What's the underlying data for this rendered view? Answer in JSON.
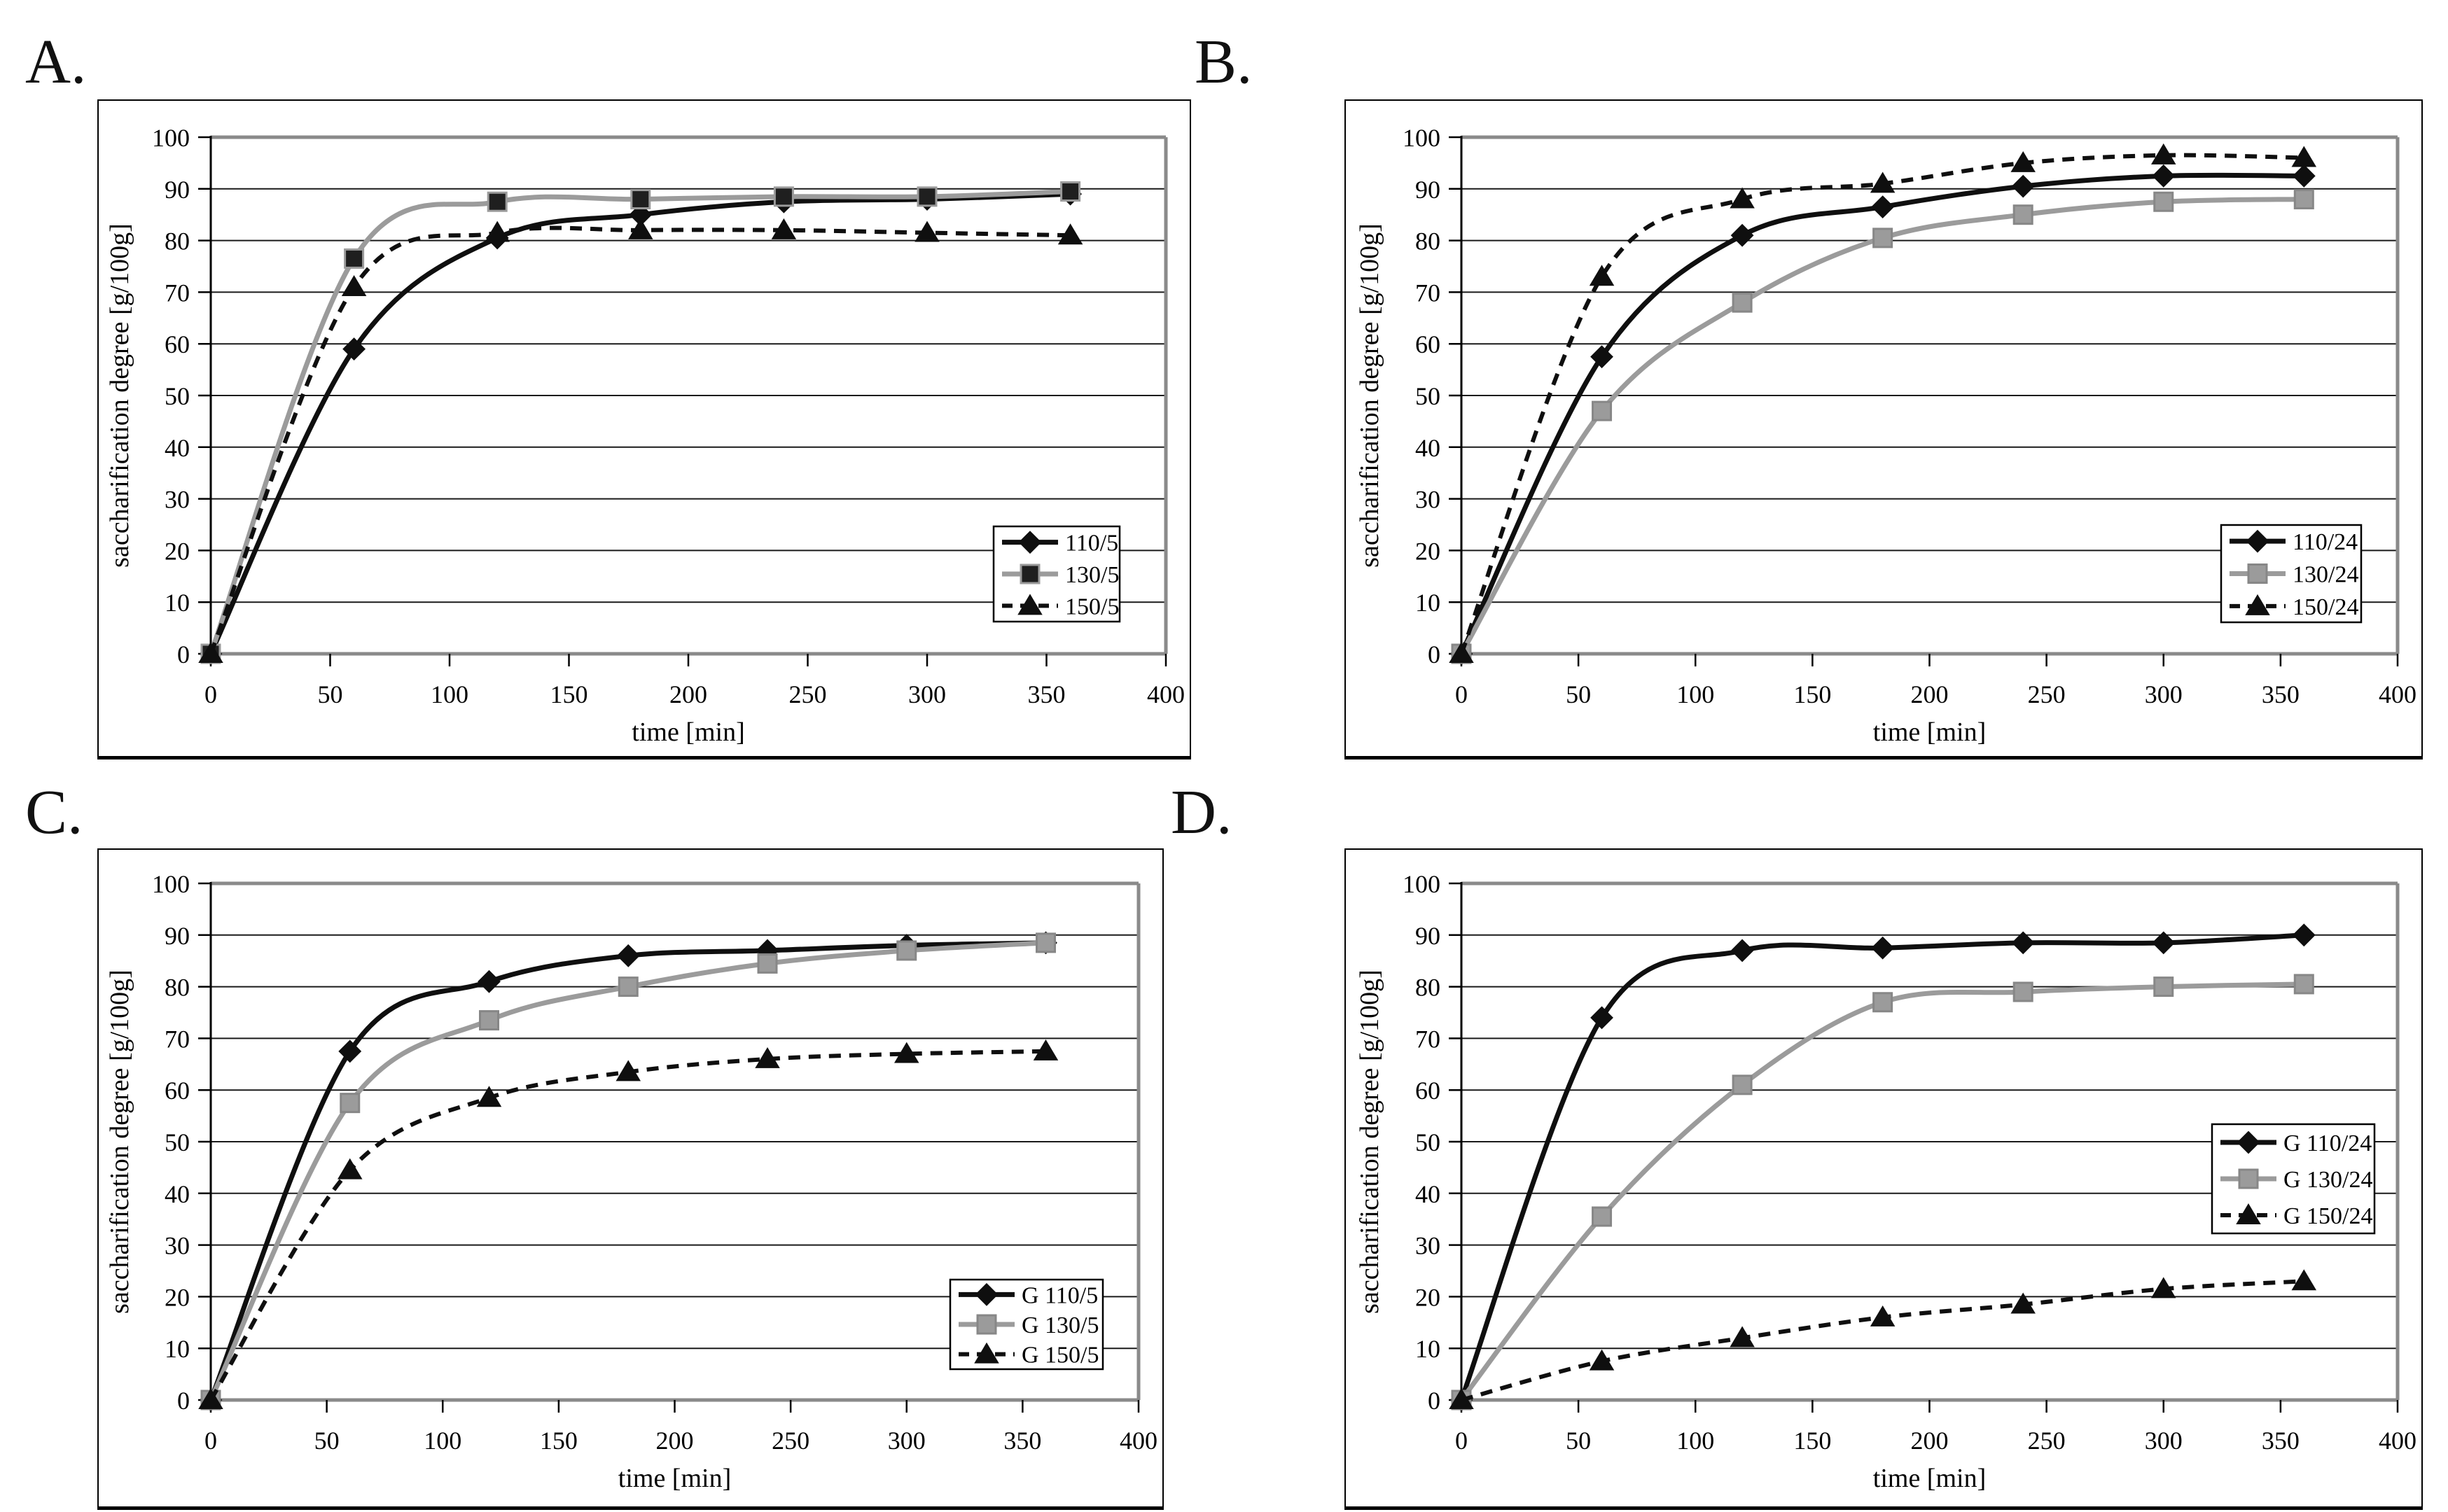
{
  "figure": {
    "description": "Four line charts (A-D) of saccharification degree over time",
    "background_color": "#ffffff",
    "text_color": "#000000",
    "series_black_color": "#0f0f0f",
    "series_gray_color": "#9b9b9b",
    "plot_border_color": "#8a8a8a"
  },
  "chart_data": [
    {
      "type": "line",
      "panel_label": "A.",
      "xlabel": "time [min]",
      "ylabel": "saccharification degree [g/100g]",
      "xlim": [
        0,
        400
      ],
      "ylim": [
        0,
        100
      ],
      "xticks": [
        0,
        50,
        100,
        150,
        200,
        250,
        300,
        350,
        400
      ],
      "yticks": [
        0,
        10,
        20,
        30,
        40,
        50,
        60,
        70,
        80,
        90,
        100
      ],
      "grid": "horizontal",
      "legend_position": "inside-lower-right",
      "x": [
        0,
        60,
        120,
        180,
        240,
        300,
        360
      ],
      "series": [
        {
          "name": "110/5",
          "line": "solid",
          "color": "#0f0f0f",
          "marker": "diamond",
          "marker_fill": "#0f0f0f",
          "marker_stroke": "#0f0f0f",
          "values": [
            0,
            59,
            80.5,
            85,
            87.5,
            88,
            89
          ]
        },
        {
          "name": "130/5",
          "line": "solid",
          "color": "#9b9b9b",
          "marker": "square",
          "marker_fill": "#1f1f1f",
          "marker_stroke": "#9b9b9b",
          "values": [
            0,
            76.5,
            87.5,
            88,
            88.5,
            88.5,
            89.5
          ]
        },
        {
          "name": "150/5",
          "line": "dashed",
          "color": "#0f0f0f",
          "marker": "triangle",
          "marker_fill": "#0f0f0f",
          "marker_stroke": "#0f0f0f",
          "values": [
            0,
            71,
            81.5,
            82,
            82,
            81.5,
            81
          ]
        }
      ]
    },
    {
      "type": "line",
      "panel_label": "B.",
      "xlabel": "time [min]",
      "ylabel": "saccharification degree [g/100g]",
      "xlim": [
        0,
        400
      ],
      "ylim": [
        0,
        100
      ],
      "xticks": [
        0,
        50,
        100,
        150,
        200,
        250,
        300,
        350,
        400
      ],
      "yticks": [
        0,
        10,
        20,
        30,
        40,
        50,
        60,
        70,
        80,
        90,
        100
      ],
      "grid": "horizontal",
      "legend_position": "inside-lower-right",
      "x": [
        0,
        60,
        120,
        180,
        240,
        300,
        360
      ],
      "series": [
        {
          "name": "110/24",
          "line": "solid",
          "color": "#0f0f0f",
          "marker": "diamond",
          "marker_fill": "#0f0f0f",
          "marker_stroke": "#0f0f0f",
          "values": [
            0,
            57.5,
            81,
            86.5,
            90.5,
            92.5,
            92.5
          ]
        },
        {
          "name": "130/24",
          "line": "solid",
          "color": "#9b9b9b",
          "marker": "square",
          "marker_fill": "#9b9b9b",
          "marker_stroke": "#878787",
          "values": [
            0,
            47,
            68,
            80.5,
            85,
            87.5,
            88
          ]
        },
        {
          "name": "150/24",
          "line": "dashed",
          "color": "#0f0f0f",
          "marker": "triangle",
          "marker_fill": "#0f0f0f",
          "marker_stroke": "#0f0f0f",
          "values": [
            0,
            73,
            88,
            91,
            95,
            96.5,
            96
          ]
        }
      ]
    },
    {
      "type": "line",
      "panel_label": "C.",
      "xlabel": "time [min]",
      "ylabel": "saccharification degree [g/100g]",
      "xlim": [
        0,
        400
      ],
      "ylim": [
        0,
        100
      ],
      "xticks": [
        0,
        50,
        100,
        150,
        200,
        250,
        300,
        350,
        400
      ],
      "yticks": [
        0,
        10,
        20,
        30,
        40,
        50,
        60,
        70,
        80,
        90,
        100
      ],
      "grid": "horizontal",
      "legend_position": "inside-lower-right",
      "x": [
        0,
        60,
        120,
        180,
        240,
        300,
        360
      ],
      "series": [
        {
          "name": "G 110/5",
          "line": "solid",
          "color": "#0f0f0f",
          "marker": "diamond",
          "marker_fill": "#0f0f0f",
          "marker_stroke": "#0f0f0f",
          "values": [
            0,
            67.5,
            81,
            86,
            87,
            88,
            88.5
          ]
        },
        {
          "name": "G 130/5",
          "line": "solid",
          "color": "#9b9b9b",
          "marker": "square",
          "marker_fill": "#9b9b9b",
          "marker_stroke": "#878787",
          "values": [
            0,
            57.5,
            73.5,
            80,
            84.5,
            87,
            88.5
          ]
        },
        {
          "name": "G 150/5",
          "line": "dashed",
          "color": "#0f0f0f",
          "marker": "triangle",
          "marker_fill": "#0f0f0f",
          "marker_stroke": "#0f0f0f",
          "values": [
            0,
            44.5,
            58.5,
            63.5,
            66,
            67,
            67.5
          ]
        }
      ]
    },
    {
      "type": "line",
      "panel_label": "D.",
      "xlabel": "time [min]",
      "ylabel": "saccharification degree [g/100g]",
      "xlim": [
        0,
        400
      ],
      "ylim": [
        0,
        100
      ],
      "xticks": [
        0,
        50,
        100,
        150,
        200,
        250,
        300,
        350,
        400
      ],
      "yticks": [
        0,
        10,
        20,
        30,
        40,
        50,
        60,
        70,
        80,
        90,
        100
      ],
      "grid": "horizontal",
      "legend_position": "inside-middle-right",
      "x": [
        0,
        60,
        120,
        180,
        240,
        300,
        360
      ],
      "series": [
        {
          "name": "G 110/24",
          "line": "solid",
          "color": "#0f0f0f",
          "marker": "diamond",
          "marker_fill": "#0f0f0f",
          "marker_stroke": "#0f0f0f",
          "values": [
            0,
            74,
            87,
            87.5,
            88.5,
            88.5,
            90
          ]
        },
        {
          "name": "G 130/24",
          "line": "solid",
          "color": "#9b9b9b",
          "marker": "square",
          "marker_fill": "#9b9b9b",
          "marker_stroke": "#878787",
          "values": [
            0,
            35.5,
            61,
            77,
            79,
            80,
            80.5
          ]
        },
        {
          "name": "G 150/24",
          "line": "dashed",
          "color": "#0f0f0f",
          "marker": "triangle",
          "marker_fill": "#0f0f0f",
          "marker_stroke": "#0f0f0f",
          "values": [
            0,
            7.5,
            12,
            16,
            18.5,
            21.5,
            23
          ]
        }
      ]
    }
  ]
}
